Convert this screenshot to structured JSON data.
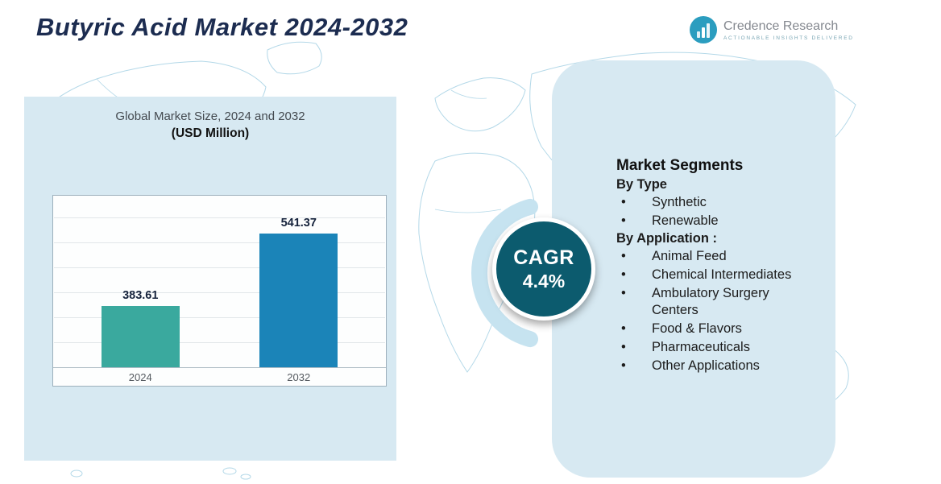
{
  "header": {
    "title": "Butyric Acid Market 2024-2032",
    "logo": {
      "brand": "Credence Research",
      "tagline": "Actionable Insights Delivered",
      "icon": "bar-chart-circle-icon"
    }
  },
  "chart_data": {
    "type": "bar",
    "title": "Global Market Size, 2024 and 2032",
    "subtitle": "(USD Million)",
    "categories": [
      "2024",
      "2032"
    ],
    "values": [
      383.61,
      541.37
    ],
    "bar_colors": [
      "#3aa99e",
      "#1b84b8"
    ],
    "axis_range_estimate": [
      250,
      600
    ],
    "grid": true,
    "legend": "none",
    "ylabel": "",
    "xlabel": ""
  },
  "cagr_badge": {
    "label": "CAGR",
    "value": "4.4%"
  },
  "market_segments": {
    "heading": "Market Segments",
    "groups": [
      {
        "label": "By Type",
        "items": [
          "Synthetic",
          "Renewable"
        ]
      },
      {
        "label": "By Application :",
        "items": [
          "Animal Feed",
          "Chemical Intermediates",
          "Ambulatory Surgery Centers",
          "Food & Flavors",
          "Pharmaceuticals",
          "Other Applications"
        ]
      }
    ]
  },
  "colors": {
    "panel_bg": "#d7e9f2",
    "cagr_circle": "#0c5b6e",
    "crescent": "#c6e3f0",
    "title_text": "#1c2c50",
    "map_line": "#b3d8e8",
    "logo_teal": "#2b9dbf"
  }
}
